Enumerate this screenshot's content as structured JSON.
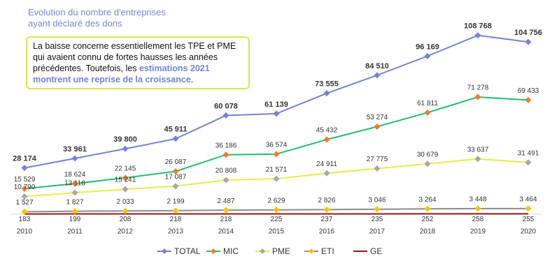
{
  "chart_data": {
    "type": "line",
    "title": "Evolution du nombre d'entreprises ayant déclaré des dons",
    "annotation": {
      "text": "La baisse concerne essentiellement les TPE et PME qui avaient connu de fortes hausses les années précédentes. Toutefois, les ",
      "highlight": "estimations 2021 montrent une reprise de la croissance",
      "end": "."
    },
    "categories": [
      "2010",
      "2011",
      "2012",
      "2013",
      "2014",
      "2015",
      "2016",
      "2017",
      "2018",
      "2019",
      "2020"
    ],
    "ylim": [
      0,
      115000
    ],
    "series": [
      {
        "name": "TOTAL",
        "color": "#7483d4",
        "marker_color": "#7483d4",
        "values": [
          28174,
          33961,
          39800,
          45911,
          60078,
          61139,
          73555,
          84510,
          96169,
          108768,
          104756
        ],
        "value_labels": [
          "28 174",
          "33 961",
          "39 800",
          "45 911",
          "60 078",
          "61 139",
          "73 555",
          "84 510",
          "96 169",
          "108 768",
          "104 756"
        ]
      },
      {
        "name": "MIC",
        "color": "#1fbf6a",
        "marker_color": "#f07a30",
        "values": [
          15529,
          18624,
          22145,
          26087,
          36186,
          36574,
          45432,
          53274,
          61811,
          71278,
          69433
        ],
        "value_labels": [
          "15 529",
          "18 624",
          "22 145",
          "26 087",
          "36 186",
          "36 574",
          "45 432",
          "53 274",
          "61 811",
          "71 278",
          "69 433"
        ]
      },
      {
        "name": "PME",
        "color": "#e0ef4a",
        "marker_color": "#a8a8a8",
        "values": [
          10790,
          13118,
          15241,
          17087,
          20808,
          21571,
          24911,
          27775,
          30679,
          33637,
          31491
        ],
        "value_labels": [
          "10 790",
          "13 118",
          "15 241",
          "17 087",
          "20 808",
          "21 571",
          "24 911",
          "27 775",
          "30 679",
          "33 637",
          "31 491"
        ]
      },
      {
        "name": "ETI",
        "color": "#8c8c8c",
        "marker_color": "#f7c400",
        "values": [
          1527,
          1827,
          2033,
          2199,
          2487,
          2629,
          2826,
          3046,
          3264,
          3448,
          3464
        ],
        "value_labels": [
          "1 527",
          "1 827",
          "2 033",
          "2 199",
          "2 487",
          "2 629",
          "2 826",
          "3 046",
          "3 264",
          "3 448",
          "3 464"
        ]
      },
      {
        "name": "GE",
        "color": "#8b1a1a",
        "marker_color": null,
        "values": [
          183,
          199,
          208,
          218,
          218,
          225,
          237,
          235,
          252,
          258,
          255
        ]
      }
    ]
  }
}
